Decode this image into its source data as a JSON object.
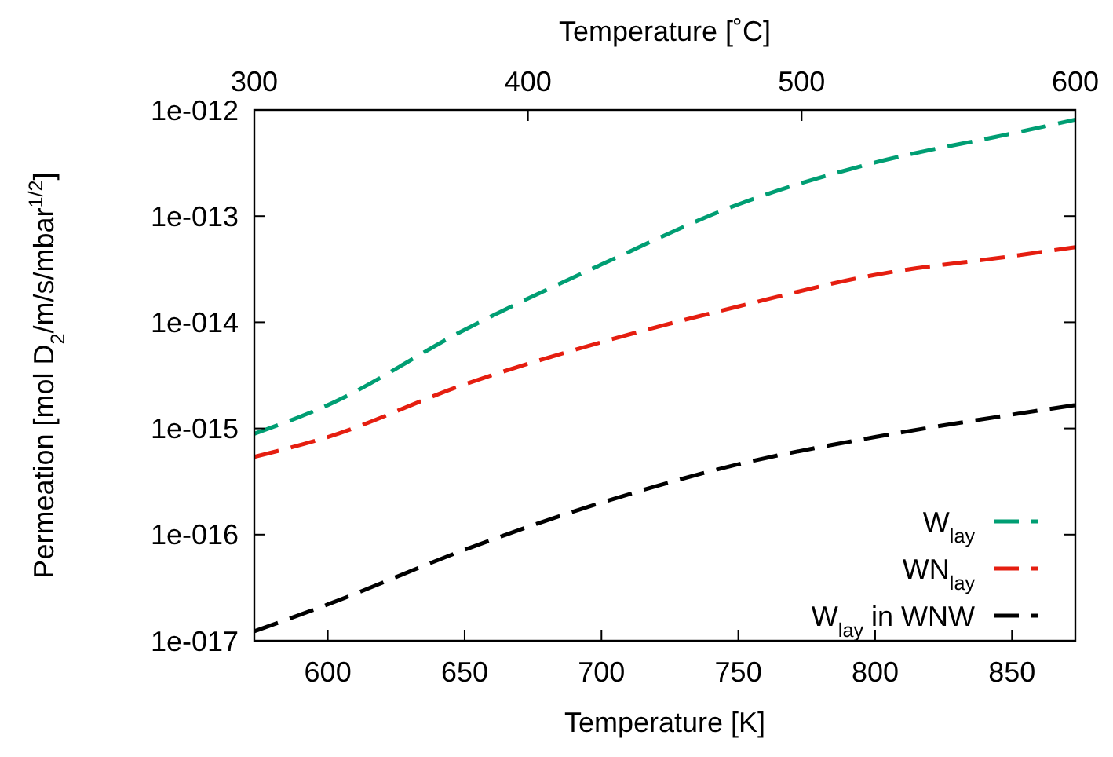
{
  "chart_data": {
    "type": "line",
    "xlabel": "Temperature [K]",
    "x2label": "Temperature [˚C]",
    "ylabel": "Permeation [mol D$_{2}$/m/s/mbar$^{1/2}$]",
    "x": [
      573.15,
      600,
      650,
      700,
      750,
      800,
      850,
      873.15
    ],
    "series": [
      {
        "name": "W$_{lay}$",
        "color": "#009e73",
        "values": [
          8.9e-16,
          1.66e-15,
          8.5e-15,
          3.5e-14,
          1.29e-13,
          3.2e-13,
          6e-13,
          8.1e-13
        ]
      },
      {
        "name": "WN$_{lay}$",
        "color": "#e51e10",
        "values": [
          5.4e-16,
          8.3e-16,
          2.6e-15,
          6.5e-15,
          1.41e-14,
          2.8e-14,
          4.2e-14,
          5.1e-14
        ]
      },
      {
        "name": "W$_{lay}$ in WNW",
        "color": "#000000",
        "values": [
          1.23e-17,
          2.2e-17,
          7.2e-17,
          2e-16,
          4.6e-16,
          8.3e-16,
          1.35e-15,
          1.66e-15
        ]
      }
    ],
    "xlim": [
      573.15,
      873.15
    ],
    "xticks": [
      600,
      650,
      700,
      750,
      800,
      850
    ],
    "x2lim": [
      300,
      600
    ],
    "x2ticks": [
      300,
      400,
      500,
      600
    ],
    "ylim": [
      1e-17,
      1e-12
    ],
    "yticks": [
      {
        "value": 1e-17,
        "label": "1e-017"
      },
      {
        "value": 1e-16,
        "label": "1e-016"
      },
      {
        "value": 1e-15,
        "label": "1e-015"
      },
      {
        "value": 1e-14,
        "label": "1e-014"
      },
      {
        "value": 1e-13,
        "label": "1e-013"
      },
      {
        "value": 1e-12,
        "label": "1e-012"
      }
    ],
    "log": "y",
    "grid": false,
    "legend": "bottom right",
    "line_style": "dashed",
    "marker": "none"
  }
}
